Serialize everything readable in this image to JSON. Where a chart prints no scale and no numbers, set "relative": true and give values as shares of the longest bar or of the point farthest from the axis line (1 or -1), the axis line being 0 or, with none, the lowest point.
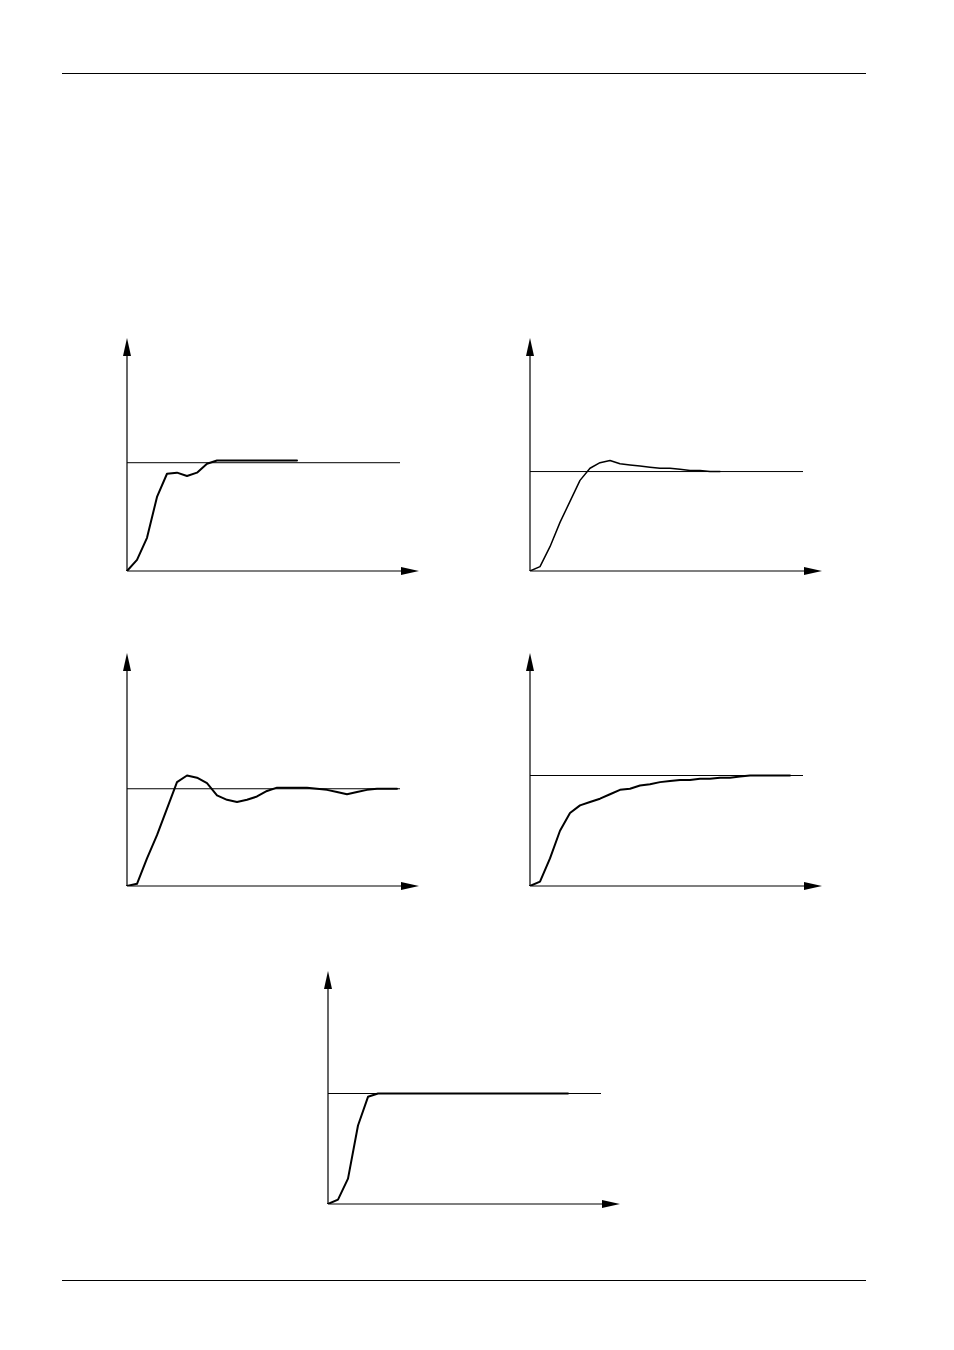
{
  "chart_data": [
    {
      "type": "line",
      "relative": true,
      "marker": "none",
      "categories": [
        null,
        null,
        null,
        null,
        null,
        null,
        null,
        null,
        null,
        null,
        null,
        null,
        null,
        null,
        null,
        null,
        null,
        null,
        null,
        null,
        null,
        null,
        null,
        null,
        null,
        null,
        null,
        null,
        null
      ],
      "series": [
        {
          "color": "#000000",
          "values": [
            0,
            0.1,
            0.3,
            0.67,
            0.88,
            0.89,
            0.86,
            0.89,
            0.97,
            1,
            1,
            1,
            1,
            1,
            1,
            1,
            1,
            1,
            null,
            null,
            null,
            null,
            null,
            null,
            null,
            null,
            null,
            null,
            null
          ]
        }
      ],
      "ref_lines": [
        {
          "axis": "y",
          "value": 0.98,
          "color": "#000000"
        }
      ]
    },
    {
      "type": "line",
      "relative": true,
      "marker": "none",
      "categories": [
        null,
        null,
        null,
        null,
        null,
        null,
        null,
        null,
        null,
        null,
        null,
        null,
        null,
        null,
        null,
        null,
        null,
        null,
        null,
        null,
        null,
        null,
        null,
        null,
        null,
        null,
        null,
        null,
        null
      ],
      "series": [
        {
          "color": "#000000",
          "values": [
            0,
            0.04,
            0.22,
            0.44,
            0.63,
            0.82,
            0.93,
            0.98,
            1,
            0.97,
            0.96,
            0.95,
            0.94,
            0.93,
            0.93,
            0.92,
            0.91,
            0.91,
            0.9,
            0.9,
            null,
            null,
            null,
            null,
            null,
            null,
            null,
            null,
            null
          ]
        }
      ],
      "ref_lines": [
        {
          "axis": "y",
          "value": 0.9,
          "color": "#000000"
        }
      ]
    },
    {
      "type": "line",
      "relative": true,
      "marker": "none",
      "categories": [
        null,
        null,
        null,
        null,
        null,
        null,
        null,
        null,
        null,
        null,
        null,
        null,
        null,
        null,
        null,
        null,
        null,
        null,
        null,
        null,
        null,
        null,
        null,
        null,
        null,
        null,
        null,
        null,
        null
      ],
      "series": [
        {
          "color": "#000000",
          "values": [
            0,
            0.02,
            0.25,
            0.46,
            0.7,
            0.94,
            1,
            0.98,
            0.93,
            0.82,
            0.78,
            0.76,
            0.78,
            0.81,
            0.86,
            0.89,
            0.89,
            0.89,
            0.89,
            0.88,
            0.87,
            0.85,
            0.83,
            0.85,
            0.87,
            0.88,
            0.88,
            0.88,
            null
          ]
        }
      ],
      "ref_lines": [
        {
          "axis": "y",
          "value": 0.88,
          "color": "#000000"
        }
      ]
    },
    {
      "type": "line",
      "relative": true,
      "marker": "none",
      "categories": [
        null,
        null,
        null,
        null,
        null,
        null,
        null,
        null,
        null,
        null,
        null,
        null,
        null,
        null,
        null,
        null,
        null,
        null,
        null,
        null,
        null,
        null,
        null,
        null,
        null,
        null,
        null,
        null,
        null
      ],
      "series": [
        {
          "color": "#000000",
          "values": [
            0,
            0.04,
            0.25,
            0.5,
            0.66,
            0.73,
            0.76,
            0.79,
            0.83,
            0.87,
            0.88,
            0.91,
            0.92,
            0.94,
            0.95,
            0.96,
            0.96,
            0.97,
            0.97,
            0.98,
            0.98,
            0.99,
            1,
            1,
            1,
            1,
            1,
            null,
            null
          ]
        }
      ],
      "ref_lines": [
        {
          "axis": "y",
          "value": 1,
          "color": "#000000"
        }
      ]
    },
    {
      "type": "line",
      "relative": true,
      "marker": "none",
      "categories": [
        null,
        null,
        null,
        null,
        null,
        null,
        null,
        null,
        null,
        null,
        null,
        null,
        null,
        null,
        null,
        null,
        null,
        null,
        null,
        null,
        null,
        null,
        null,
        null,
        null,
        null,
        null,
        null,
        null
      ],
      "series": [
        {
          "color": "#000000",
          "values": [
            0,
            0.04,
            0.23,
            0.71,
            0.97,
            1,
            1,
            1,
            1,
            1,
            1,
            1,
            1,
            1,
            1,
            1,
            1,
            1,
            1,
            1,
            1,
            1,
            1,
            1,
            1,
            null,
            null,
            null,
            null
          ]
        }
      ],
      "ref_lines": [
        {
          "axis": "y",
          "value": 1,
          "color": "#000000"
        }
      ]
    }
  ]
}
